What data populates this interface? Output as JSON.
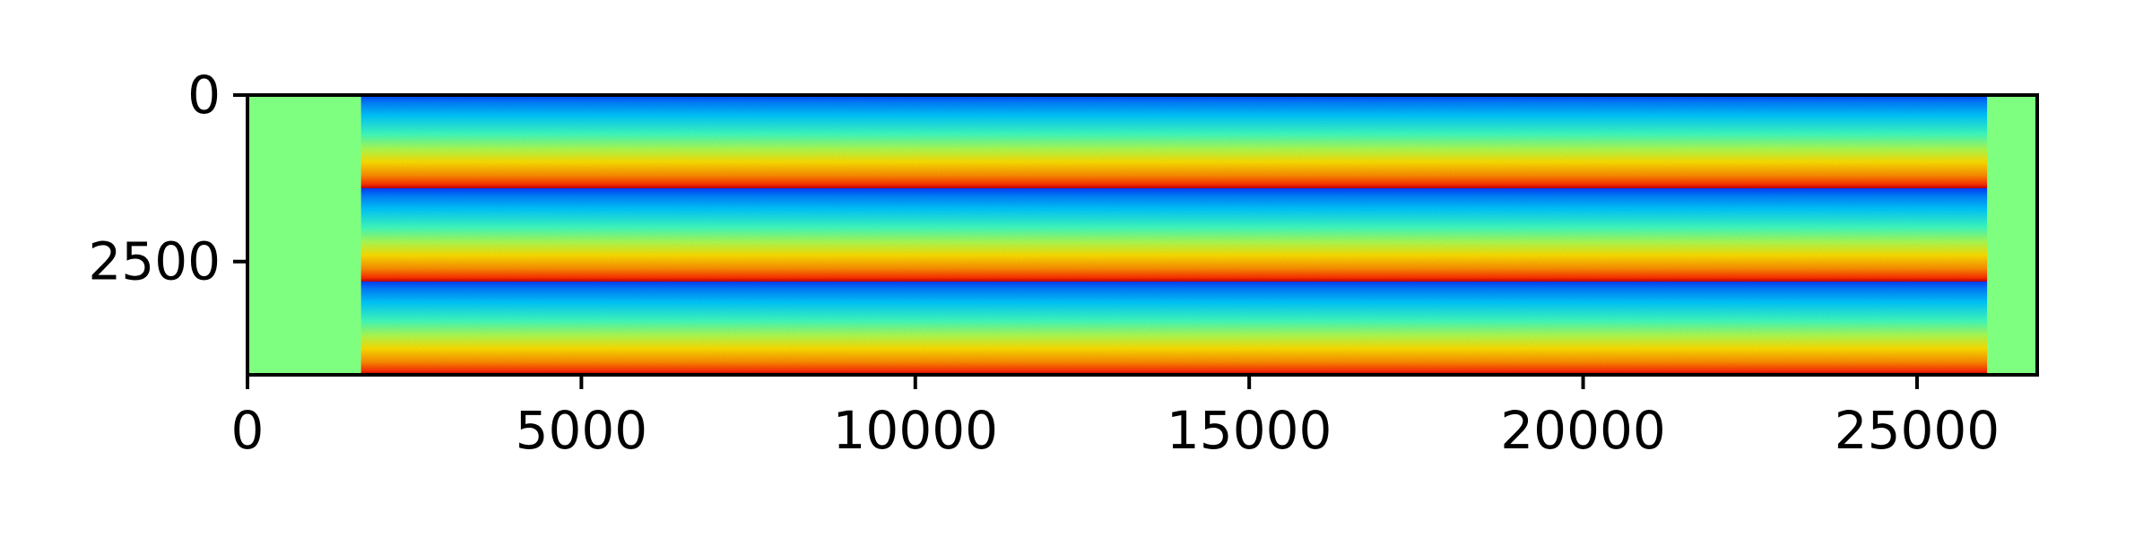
{
  "chart_data": {
    "type": "heatmap",
    "title": "",
    "xlabel": "",
    "ylabel": "",
    "colormap": "jet",
    "fill_color": "#7fff7f",
    "xlim": [
      0,
      26800
    ],
    "ylim": [
      4200,
      0
    ],
    "y_inverted": true,
    "grid": false,
    "legend": "none",
    "x_ticks": [
      {
        "value": 0,
        "label": "0"
      },
      {
        "value": 5000,
        "label": "5000"
      },
      {
        "value": 10000,
        "label": "10000"
      },
      {
        "value": 15000,
        "label": "15000"
      },
      {
        "value": 20000,
        "label": "20000"
      },
      {
        "value": 25000,
        "label": "25000"
      }
    ],
    "y_ticks": [
      {
        "value": 0,
        "label": "0"
      },
      {
        "value": 2500,
        "label": "2500"
      }
    ],
    "data_region": {
      "x_start": 1700,
      "x_end": 26050
    },
    "bands": [
      {
        "y_start": 0,
        "y_end": 1400
      },
      {
        "y_start": 1400,
        "y_end": 2800
      },
      {
        "y_start": 2800,
        "y_end": 4200
      }
    ]
  }
}
